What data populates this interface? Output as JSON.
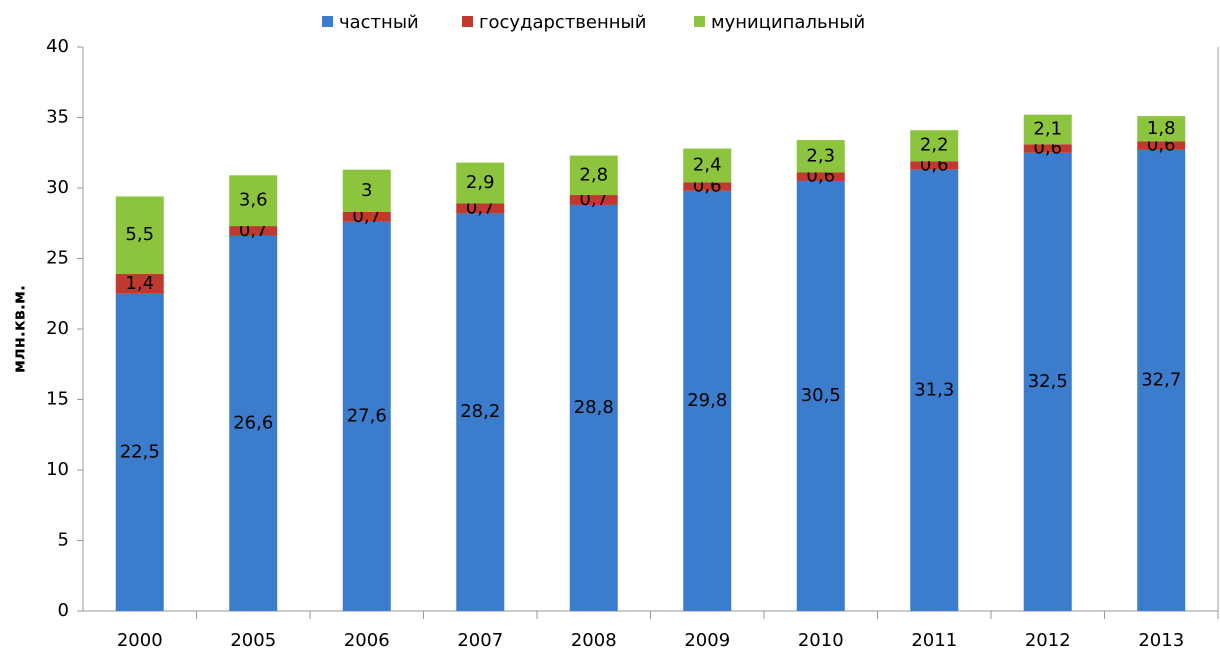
{
  "chart_data": {
    "type": "stacked_bar",
    "y_label": "млн.кв.м.",
    "categories": [
      "2000",
      "2005",
      "2006",
      "2007",
      "2008",
      "2009",
      "2010",
      "2011",
      "2012",
      "2013"
    ],
    "series": [
      {
        "name": "частный",
        "color": "#3b7ccd",
        "values": [
          22.5,
          26.6,
          27.6,
          28.2,
          28.8,
          29.8,
          30.5,
          31.3,
          32.5,
          32.7
        ],
        "value_labels": [
          "22,5",
          "26,6",
          "27,6",
          "28,2",
          "28,8",
          "29,8",
          "30,5",
          "31,3",
          "32,5",
          "32,7"
        ]
      },
      {
        "name": "государственный",
        "color": "#c0392f",
        "values": [
          1.4,
          0.7,
          0.7,
          0.7,
          0.7,
          0.6,
          0.6,
          0.6,
          0.6,
          0.6
        ],
        "value_labels": [
          "1,4",
          "0,7",
          "0,7",
          "0,7",
          "0,7",
          "0,6",
          "0,6",
          "0,6",
          "0,6",
          "0,6"
        ]
      },
      {
        "name": "муниципальный",
        "color": "#8cc43e",
        "values": [
          5.5,
          3.6,
          3,
          2.9,
          2.8,
          2.4,
          2.3,
          2.2,
          2.1,
          1.8
        ],
        "value_labels": [
          "5,5",
          "3,6",
          "3",
          "2,9",
          "2,8",
          "2,4",
          "2,3",
          "2,2",
          "2,1",
          "1,8"
        ]
      }
    ],
    "ylim": [
      0,
      40
    ],
    "yticks": [
      0,
      5,
      10,
      15,
      20,
      25,
      30,
      35,
      40
    ],
    "grid": false,
    "legend": "top"
  }
}
